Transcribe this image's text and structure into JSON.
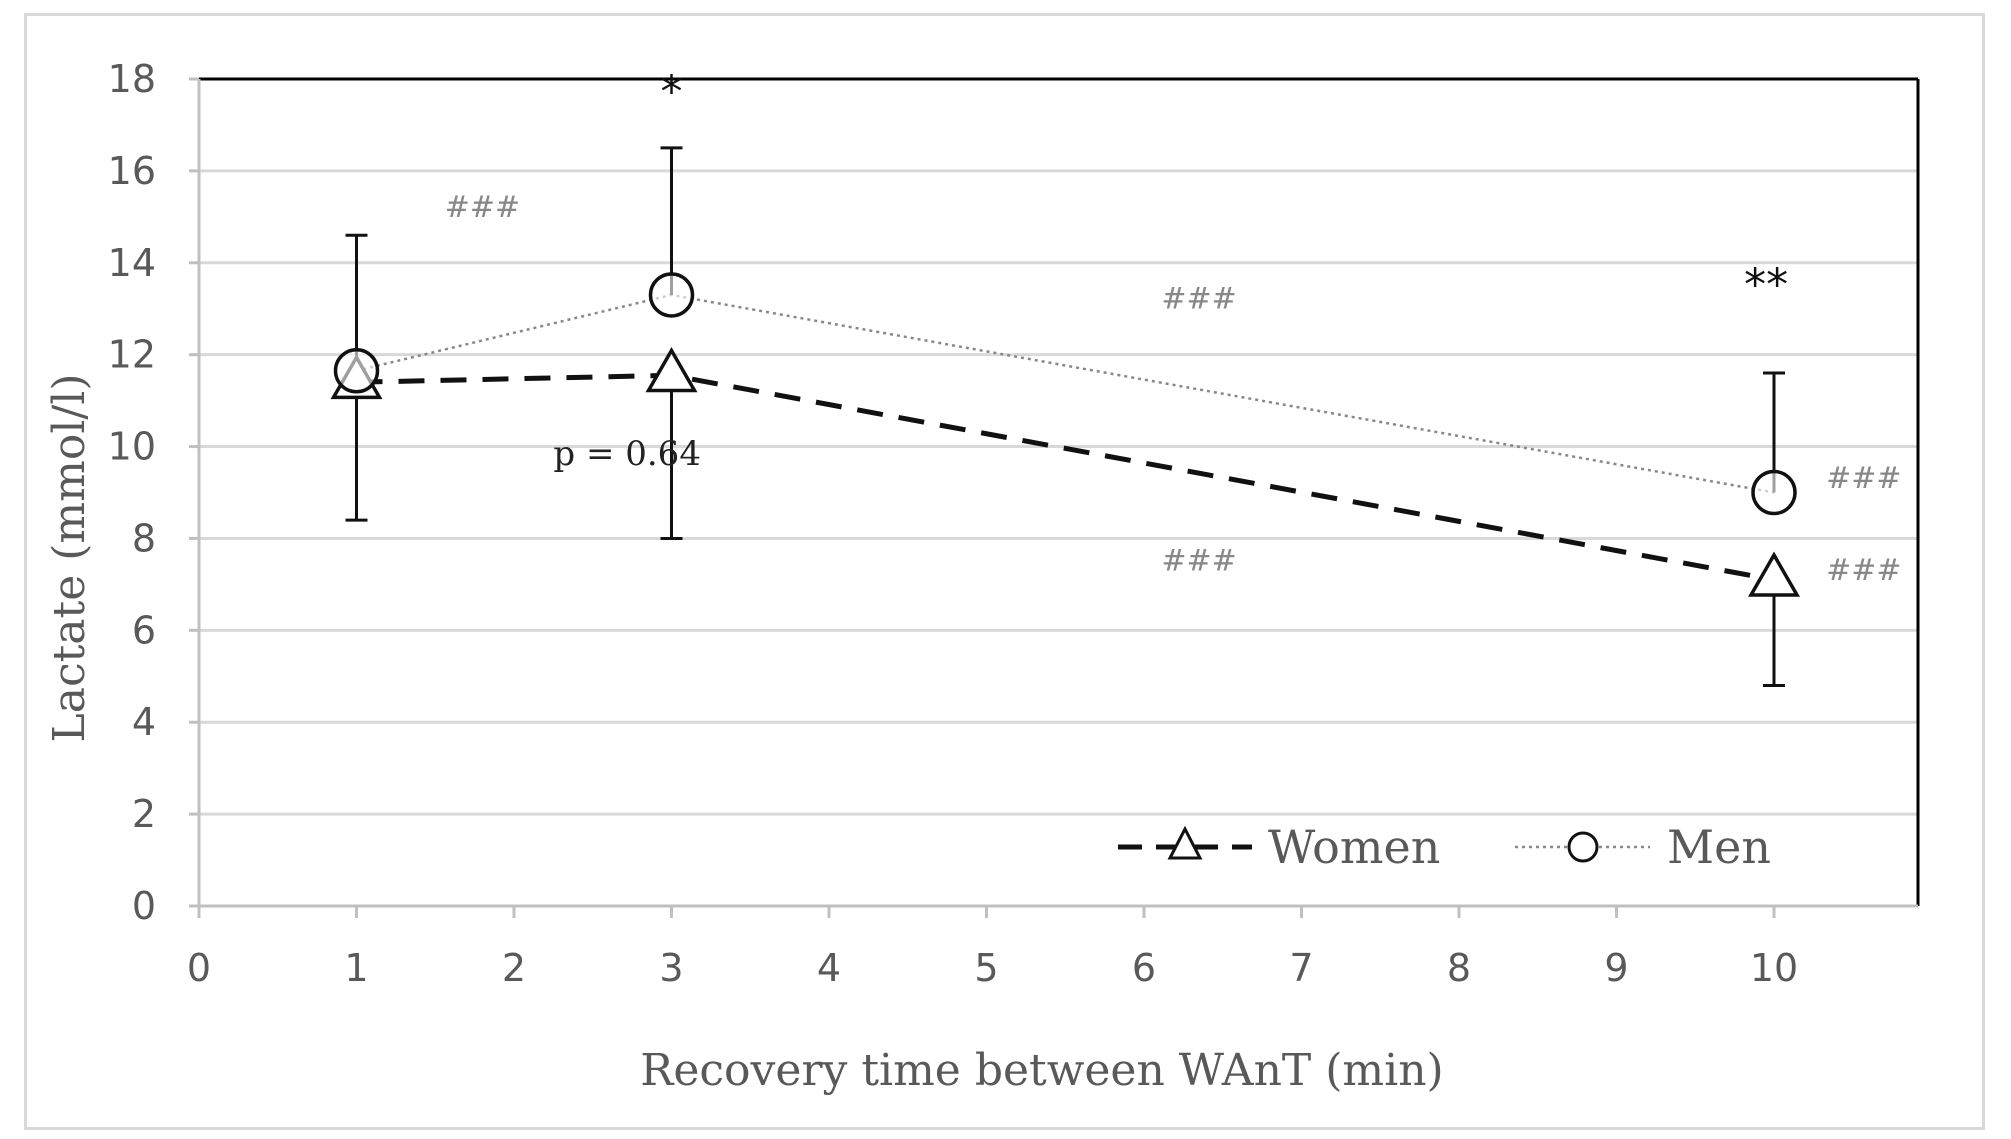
{
  "chart_data": {
    "type": "line",
    "title": "",
    "xlabel": "Recovery time between WAnT (min)",
    "ylabel": "Lactate (mmol/l)",
    "xlim": [
      0,
      11
    ],
    "ylim": [
      0,
      18
    ],
    "xticks": [
      0,
      1,
      2,
      3,
      4,
      5,
      6,
      7,
      8,
      9,
      10
    ],
    "yticks": [
      0,
      2,
      4,
      6,
      8,
      10,
      12,
      14,
      16,
      18
    ],
    "grid": true,
    "legend_position": "bottom-right",
    "series": [
      {
        "name": "Women",
        "x": [
          1,
          3,
          10
        ],
        "values": [
          11.4,
          11.55,
          7.1
        ],
        "error_low": [
          8.4,
          8.0,
          4.8
        ],
        "error_high": [
          null,
          null,
          null
        ],
        "marker": "triangle",
        "line_style": "dashed",
        "color": "#111111"
      },
      {
        "name": "Men",
        "x": [
          1,
          3,
          10
        ],
        "values": [
          11.65,
          13.3,
          9.0
        ],
        "error_low": [
          null,
          null,
          null
        ],
        "error_high": [
          14.6,
          16.5,
          11.6
        ],
        "marker": "circle",
        "line_style": "dotted",
        "color": "#888888"
      }
    ],
    "annotations": [
      {
        "text": "###",
        "x": 1.8,
        "y": 15.0,
        "kind": "hash"
      },
      {
        "text": "*",
        "x": 3.0,
        "y": 17.4,
        "kind": "star"
      },
      {
        "text": "###",
        "x": 6.35,
        "y": 13.0,
        "kind": "hash"
      },
      {
        "text": "###",
        "x": 6.35,
        "y": 7.3,
        "kind": "hash"
      },
      {
        "text": "**",
        "x": 9.95,
        "y": 13.2,
        "kind": "star"
      },
      {
        "text": "###",
        "x": 10.57,
        "y": 9.1,
        "kind": "hash"
      },
      {
        "text": "###",
        "x": 10.57,
        "y": 7.1,
        "kind": "hash"
      },
      {
        "text": "p = 0.64",
        "x": 2.25,
        "y": 9.6,
        "kind": "ptext"
      }
    ]
  }
}
